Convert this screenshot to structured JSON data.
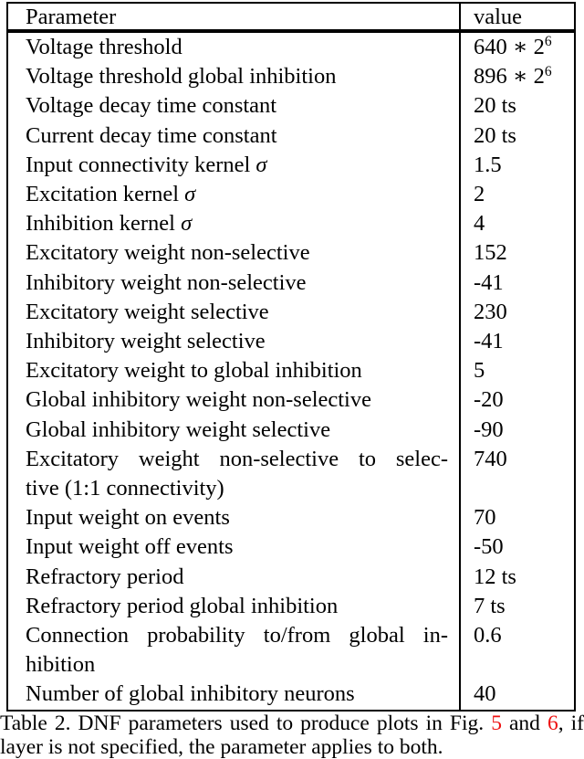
{
  "colors": {
    "text": "#000000",
    "border": "#000000",
    "background": "#ffffff",
    "figure_link_red": "#ee1111"
  },
  "table": {
    "header": {
      "param": "Parameter",
      "value": "value"
    },
    "rows": [
      {
        "param": "Voltage threshold",
        "value": "640 ∗ 2",
        "value_sup": "6"
      },
      {
        "param": "Voltage threshold global inhibition",
        "value": "896 ∗ 2",
        "value_sup": "6"
      },
      {
        "param": "Voltage decay time constant",
        "value": "20 ts"
      },
      {
        "param": "Current decay time constant",
        "value": "20 ts"
      },
      {
        "param": "Input connectivity kernel σ",
        "value": "1.5"
      },
      {
        "param": "Excitation kernel σ",
        "value": "2"
      },
      {
        "param": "Inhibition kernel σ",
        "value": "4"
      },
      {
        "param": "Excitatory weight non-selective",
        "value": "152"
      },
      {
        "param": "Inhibitory weight non-selective",
        "value": "-41"
      },
      {
        "param": "Excitatory weight selective",
        "value": "230"
      },
      {
        "param": "Inhibitory weight selective",
        "value": "-41"
      },
      {
        "param": "Excitatory weight to global inhibition",
        "value": "5"
      },
      {
        "param": "Global inhibitory weight non-selective",
        "value": "-20"
      },
      {
        "param": "Global inhibitory weight selective",
        "value": "-90"
      },
      {
        "param_lines": [
          "Excitatory weight non-selective to selec-",
          "tive (1:1 connectivity)"
        ],
        "value": "740"
      },
      {
        "param": "Input weight on events",
        "value": "70"
      },
      {
        "param": "Input weight off events",
        "value": "-50"
      },
      {
        "param": "Refractory period",
        "value": "12 ts"
      },
      {
        "param": "Refractory period global inhibition",
        "value": "7 ts"
      },
      {
        "param_lines": [
          "Connection probability to/from global in-",
          "hibition"
        ],
        "value": "0.6"
      },
      {
        "param": "Number of global inhibitory neurons",
        "value": "40"
      }
    ]
  },
  "caption": {
    "segments": [
      {
        "text": "Table 2. DNF parameters used to produce plots in Fig. ",
        "type": "text"
      },
      {
        "text": "5",
        "type": "link"
      },
      {
        "text": " and ",
        "type": "text"
      },
      {
        "text": "6",
        "type": "link"
      },
      {
        "text": ", if layer is not specified, the parameter applies to both.",
        "type": "text"
      }
    ]
  }
}
